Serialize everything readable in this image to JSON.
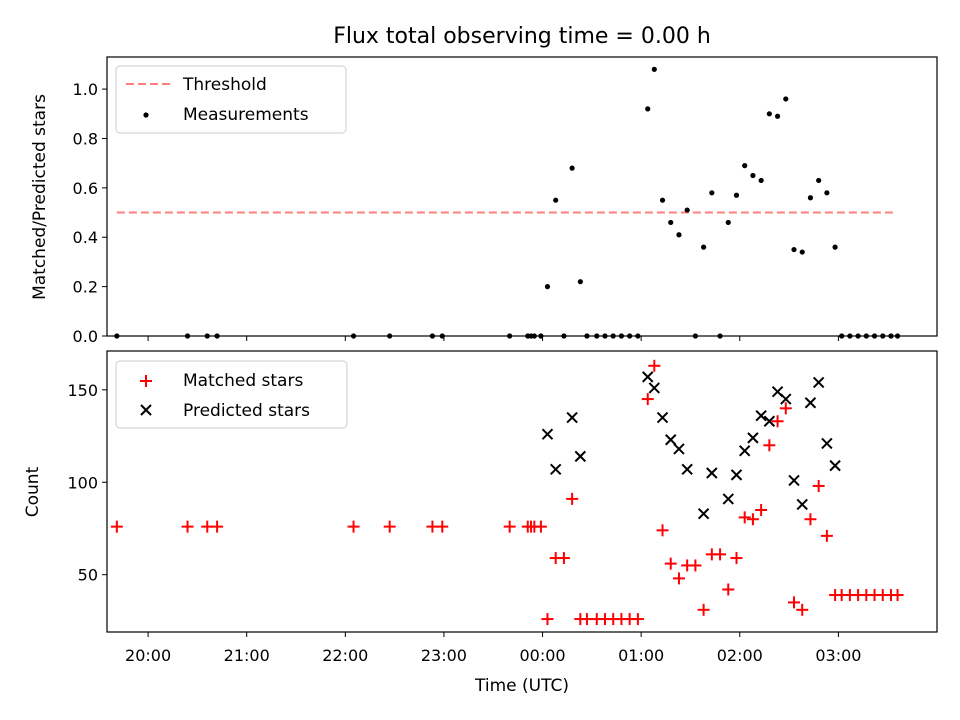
{
  "figure": {
    "title": "Flux total observing time = 0.00 h"
  },
  "chart_data": [
    {
      "type": "scatter",
      "ylabel": "Matched/Predicted stars",
      "xlabel": "",
      "xlim": [
        "19:35",
        "04:00"
      ],
      "ylim": [
        0,
        1.13
      ],
      "yticks": [
        0.0,
        0.2,
        0.4,
        0.6,
        0.8,
        1.0
      ],
      "yticklabels": [
        "0.0",
        "0.2",
        "0.4",
        "0.6",
        "0.8",
        "1.0"
      ],
      "legend": {
        "placement": "upper-left",
        "entries": [
          "Threshold",
          "Measurements"
        ]
      },
      "threshold": {
        "name": "Threshold",
        "y": 0.5,
        "x_start": "19:41",
        "x_end": "03:35",
        "color": "#ff7f7f",
        "style": "dashed"
      },
      "series": [
        {
          "name": "Measurements",
          "color": "#000000",
          "marker": "dot",
          "points": [
            [
              "19:41",
              0.0
            ],
            [
              "20:24",
              0.0
            ],
            [
              "20:36",
              0.0
            ],
            [
              "20:42",
              0.0
            ],
            [
              "22:05",
              0.0
            ],
            [
              "22:27",
              0.0
            ],
            [
              "22:53",
              0.0
            ],
            [
              "22:59",
              0.0
            ],
            [
              "23:40",
              0.0
            ],
            [
              "23:51",
              0.0
            ],
            [
              "23:53",
              0.0
            ],
            [
              "23:55",
              0.0
            ],
            [
              "23:59",
              0.0
            ],
            [
              "00:03",
              0.2
            ],
            [
              "00:08",
              0.55
            ],
            [
              "00:13",
              0.0
            ],
            [
              "00:18",
              0.68
            ],
            [
              "00:23",
              0.22
            ],
            [
              "00:27",
              0.0
            ],
            [
              "00:33",
              0.0
            ],
            [
              "00:38",
              0.0
            ],
            [
              "00:43",
              0.0
            ],
            [
              "00:48",
              0.0
            ],
            [
              "00:53",
              0.0
            ],
            [
              "00:58",
              0.0
            ],
            [
              "01:04",
              0.92
            ],
            [
              "01:08",
              1.08
            ],
            [
              "01:13",
              0.55
            ],
            [
              "01:18",
              0.46
            ],
            [
              "01:23",
              0.41
            ],
            [
              "01:28",
              0.51
            ],
            [
              "01:33",
              0.0
            ],
            [
              "01:38",
              0.36
            ],
            [
              "01:43",
              0.58
            ],
            [
              "01:48",
              0.0
            ],
            [
              "01:53",
              0.46
            ],
            [
              "01:58",
              0.57
            ],
            [
              "02:03",
              0.69
            ],
            [
              "02:08",
              0.65
            ],
            [
              "02:13",
              0.63
            ],
            [
              "02:18",
              0.9
            ],
            [
              "02:23",
              0.89
            ],
            [
              "02:28",
              0.96
            ],
            [
              "02:33",
              0.35
            ],
            [
              "02:38",
              0.34
            ],
            [
              "02:43",
              0.56
            ],
            [
              "02:48",
              0.63
            ],
            [
              "02:53",
              0.58
            ],
            [
              "02:58",
              0.36
            ],
            [
              "03:02",
              0.0
            ],
            [
              "03:07",
              0.0
            ],
            [
              "03:12",
              0.0
            ],
            [
              "03:17",
              0.0
            ],
            [
              "03:22",
              0.0
            ],
            [
              "03:27",
              0.0
            ],
            [
              "03:32",
              0.0
            ],
            [
              "03:36",
              0.0
            ]
          ]
        }
      ]
    },
    {
      "type": "scatter",
      "ylabel": "Count",
      "xlabel": "Time (UTC)",
      "xlim": [
        "19:35",
        "04:00"
      ],
      "ylim": [
        19,
        171
      ],
      "yticks": [
        50,
        100,
        150
      ],
      "yticklabels": [
        "50",
        "100",
        "150"
      ],
      "xticks": [
        "20:00",
        "21:00",
        "22:00",
        "23:00",
        "00:00",
        "01:00",
        "02:00",
        "03:00"
      ],
      "xticklabels": [
        "20:00",
        "21:00",
        "22:00",
        "23:00",
        "00:00",
        "01:00",
        "02:00",
        "03:00"
      ],
      "legend": {
        "placement": "upper-left",
        "entries": [
          "Matched stars",
          "Predicted stars"
        ]
      },
      "series": [
        {
          "name": "Matched stars",
          "color": "#ff0000",
          "marker": "plus",
          "points": [
            [
              "19:41",
              76
            ],
            [
              "20:24",
              76
            ],
            [
              "20:36",
              76
            ],
            [
              "20:42",
              76
            ],
            [
              "22:05",
              76
            ],
            [
              "22:27",
              76
            ],
            [
              "22:53",
              76
            ],
            [
              "22:59",
              76
            ],
            [
              "23:40",
              76
            ],
            [
              "23:51",
              76
            ],
            [
              "23:53",
              76
            ],
            [
              "23:55",
              76
            ],
            [
              "23:59",
              76
            ],
            [
              "00:03",
              26
            ],
            [
              "00:08",
              59
            ],
            [
              "00:13",
              59
            ],
            [
              "00:18",
              91
            ],
            [
              "00:23",
              26
            ],
            [
              "00:27",
              26
            ],
            [
              "00:33",
              26
            ],
            [
              "00:38",
              26
            ],
            [
              "00:43",
              26
            ],
            [
              "00:48",
              26
            ],
            [
              "00:53",
              26
            ],
            [
              "00:58",
              26
            ],
            [
              "01:04",
              145
            ],
            [
              "01:08",
              163
            ],
            [
              "01:13",
              74
            ],
            [
              "01:18",
              56
            ],
            [
              "01:23",
              48
            ],
            [
              "01:28",
              55
            ],
            [
              "01:33",
              55
            ],
            [
              "01:38",
              31
            ],
            [
              "01:43",
              61
            ],
            [
              "01:48",
              61
            ],
            [
              "01:53",
              42
            ],
            [
              "01:58",
              59
            ],
            [
              "02:03",
              81
            ],
            [
              "02:08",
              80
            ],
            [
              "02:13",
              85
            ],
            [
              "02:18",
              120
            ],
            [
              "02:23",
              133
            ],
            [
              "02:28",
              140
            ],
            [
              "02:33",
              35
            ],
            [
              "02:38",
              31
            ],
            [
              "02:43",
              80
            ],
            [
              "02:48",
              98
            ],
            [
              "02:53",
              71
            ],
            [
              "02:58",
              39
            ],
            [
              "03:02",
              39
            ],
            [
              "03:07",
              39
            ],
            [
              "03:12",
              39
            ],
            [
              "03:17",
              39
            ],
            [
              "03:22",
              39
            ],
            [
              "03:27",
              39
            ],
            [
              "03:32",
              39
            ],
            [
              "03:36",
              39
            ]
          ]
        },
        {
          "name": "Predicted stars",
          "color": "#000000",
          "marker": "x",
          "points": [
            [
              "00:03",
              126
            ],
            [
              "00:08",
              107
            ],
            [
              "00:18",
              135
            ],
            [
              "00:23",
              114
            ],
            [
              "01:04",
              157
            ],
            [
              "01:08",
              151
            ],
            [
              "01:13",
              135
            ],
            [
              "01:18",
              123
            ],
            [
              "01:23",
              118
            ],
            [
              "01:28",
              107
            ],
            [
              "01:38",
              83
            ],
            [
              "01:43",
              105
            ],
            [
              "01:53",
              91
            ],
            [
              "01:58",
              104
            ],
            [
              "02:03",
              117
            ],
            [
              "02:08",
              124
            ],
            [
              "02:13",
              136
            ],
            [
              "02:18",
              133
            ],
            [
              "02:23",
              149
            ],
            [
              "02:28",
              145
            ],
            [
              "02:33",
              101
            ],
            [
              "02:38",
              88
            ],
            [
              "02:43",
              143
            ],
            [
              "02:48",
              154
            ],
            [
              "02:53",
              121
            ],
            [
              "02:58",
              109
            ]
          ]
        }
      ]
    }
  ]
}
